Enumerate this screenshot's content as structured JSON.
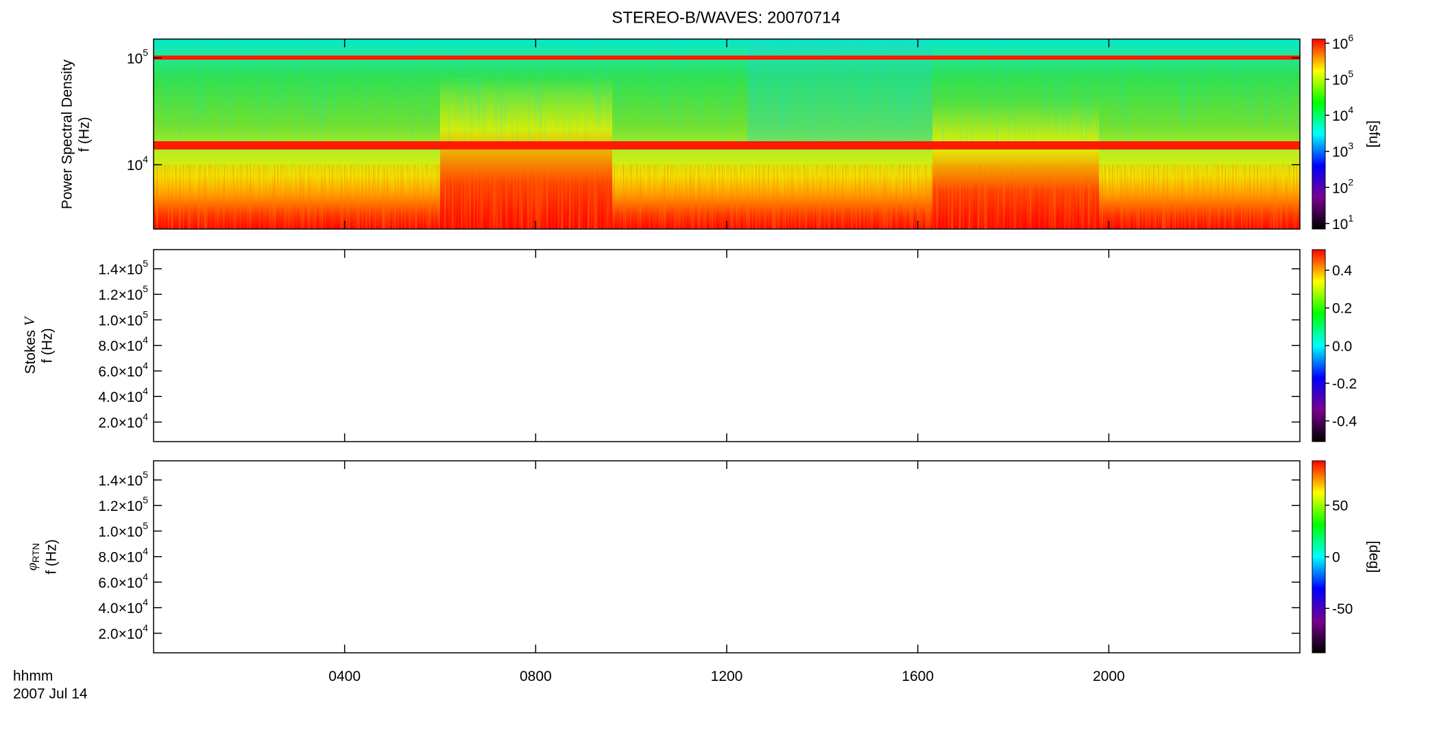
{
  "chart_data": [
    {
      "type": "spectrogram",
      "title": "STEREO-B/WAVES: 20070714",
      "ylabel": "Power Spectral Density",
      "ylabel2": "f (Hz)",
      "ylog": true,
      "ylim": [
        2500,
        150000
      ],
      "yticks": [
        {
          "value": 10000,
          "label": "10",
          "sup": "4"
        },
        {
          "value": 100000,
          "label": "10",
          "sup": "5"
        }
      ],
      "xlim": [
        0,
        24
      ],
      "xticks": [
        {
          "value": 4,
          "label": "0400"
        },
        {
          "value": 8,
          "label": "0800"
        },
        {
          "value": 12,
          "label": "1200"
        },
        {
          "value": 16,
          "label": "1600"
        },
        {
          "value": 20,
          "label": "2000"
        }
      ],
      "xlabel": "hhmm",
      "xlabel2": "2007 Jul 14",
      "colorbar_label": "[sfu]",
      "colorbar_log": true,
      "colorbar_lim": [
        7,
        1300000
      ],
      "colorbar_ticks": [
        {
          "value": 10,
          "label": "10",
          "sup": "1"
        },
        {
          "value": 100,
          "label": "10",
          "sup": "2"
        },
        {
          "value": 1000,
          "label": "10",
          "sup": "3"
        },
        {
          "value": 10000,
          "label": "10",
          "sup": "4"
        },
        {
          "value": 100000,
          "label": "10",
          "sup": "5"
        },
        {
          "value": 1000000,
          "label": "10",
          "sup": "6"
        }
      ],
      "colorscale": [
        "#000000",
        "#7a0090",
        "#0000ff",
        "#00ffff",
        "#00ff00",
        "#ffff00",
        "#ff0000"
      ]
    },
    {
      "type": "spectrogram",
      "ylabel": "Stokes",
      "ylabel_var": "V",
      "ylabel2": "f (Hz)",
      "ylim": [
        4700,
        155000
      ],
      "yticks": [
        {
          "value": 20000,
          "label": "2.0×10",
          "sup": "4"
        },
        {
          "value": 40000,
          "label": "4.0×10",
          "sup": "4"
        },
        {
          "value": 60000,
          "label": "6.0×10",
          "sup": "4"
        },
        {
          "value": 80000,
          "label": "8.0×10",
          "sup": "4"
        },
        {
          "value": 100000,
          "label": "1.0×10",
          "sup": "5"
        },
        {
          "value": 120000,
          "label": "1.2×10",
          "sup": "5"
        },
        {
          "value": 140000,
          "label": "1.4×10",
          "sup": "5"
        }
      ],
      "xlim": [
        0,
        24
      ],
      "colorbar_lim": [
        -0.51,
        0.51
      ],
      "colorbar_ticks": [
        -0.4,
        -0.2,
        {
          "value": 0,
          "label": "0.0"
        },
        0.2,
        0.4
      ],
      "colorscale": [
        "#000000",
        "#7a0090",
        "#0000ff",
        "#00ffff",
        "#00ff00",
        "#ffff00",
        "#ff0000"
      ]
    },
    {
      "type": "spectrogram",
      "ylabel_var": "φ",
      "ylabel_sub": "RTN",
      "ylabel2": "f (Hz)",
      "ylim": [
        4700,
        155000
      ],
      "yticks": [
        {
          "value": 20000,
          "label": "2.0×10",
          "sup": "4"
        },
        {
          "value": 40000,
          "label": "4.0×10",
          "sup": "4"
        },
        {
          "value": 60000,
          "label": "6.0×10",
          "sup": "4"
        },
        {
          "value": 80000,
          "label": "8.0×10",
          "sup": "4"
        },
        {
          "value": 100000,
          "label": "1.0×10",
          "sup": "5"
        },
        {
          "value": 120000,
          "label": "1.2×10",
          "sup": "5"
        },
        {
          "value": 140000,
          "label": "1.4×10",
          "sup": "5"
        }
      ],
      "xlim": [
        0,
        24
      ],
      "colorbar_label": "[deg]",
      "colorbar_lim": [
        -93,
        93
      ],
      "colorbar_ticks": [
        -50,
        0,
        50
      ],
      "colorscale": [
        "#000000",
        "#7a0090",
        "#0000ff",
        "#00ffff",
        "#00ff00",
        "#ffff00",
        "#ff0000"
      ]
    }
  ]
}
